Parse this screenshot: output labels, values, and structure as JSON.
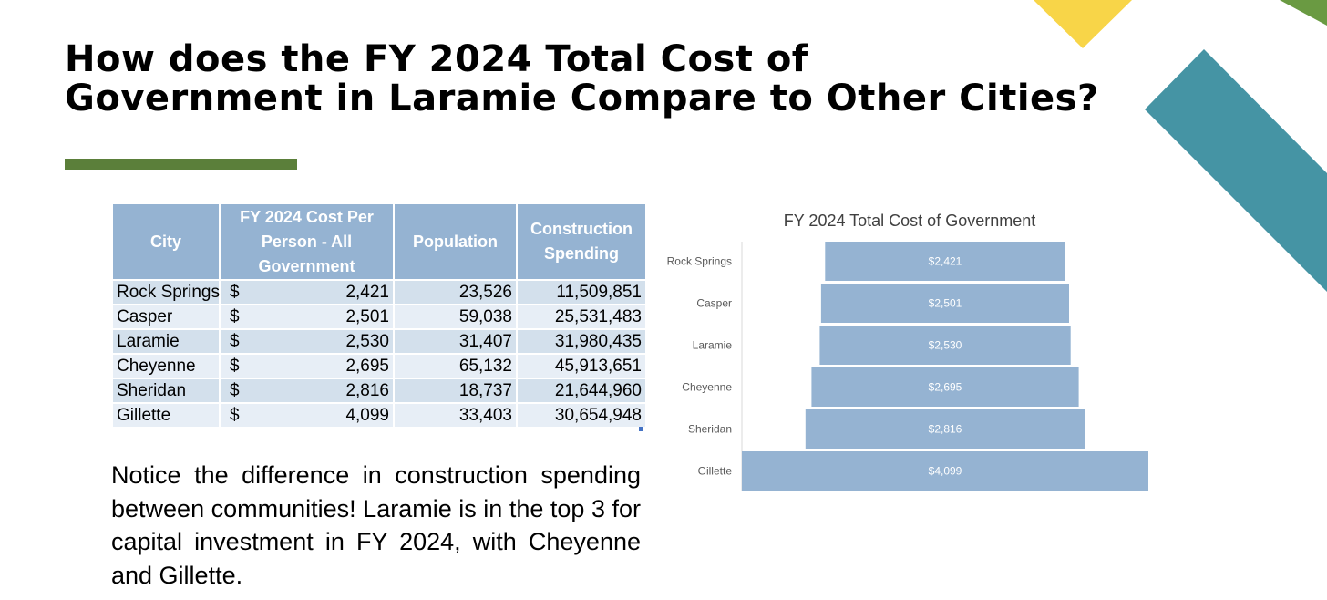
{
  "slide": {
    "title_lines": [
      "How does the FY 2024 Total Cost of",
      "Government in Laramie Compare to Other Cities?"
    ],
    "colors": {
      "accent_bar": "#5b7f3a",
      "deco_yellow": "#f8d548",
      "deco_teal": "#4594a4",
      "deco_green": "#6a9a42",
      "table_header": "#95b3d2",
      "table_row_dark": "#d3e0ec",
      "table_row_light": "#e7eef6",
      "chart_bar": "#95b3d2"
    }
  },
  "table": {
    "headers": {
      "city": "City",
      "cost": "FY 2024 Cost Per Person - All Government",
      "population": "Population",
      "construction": "Construction Spending"
    },
    "currency_symbol": "$",
    "rows": [
      {
        "city": "Rock Springs",
        "cost": "2,421",
        "population": "23,526",
        "construction": "11,509,851"
      },
      {
        "city": "Casper",
        "cost": "2,501",
        "population": "59,038",
        "construction": "25,531,483"
      },
      {
        "city": "Laramie",
        "cost": "2,530",
        "population": "31,407",
        "construction": "31,980,435"
      },
      {
        "city": "Cheyenne",
        "cost": "2,695",
        "population": "65,132",
        "construction": "45,913,651"
      },
      {
        "city": "Sheridan",
        "cost": "2,816",
        "population": "18,737",
        "construction": "21,644,960"
      },
      {
        "city": "Gillette",
        "cost": "4,099",
        "population": "33,403",
        "construction": "30,654,948"
      }
    ]
  },
  "note": "Notice the difference in construction spending between communities!  Laramie is in the top 3 for capital investment in FY 2024, with Cheyenne and Gillette.",
  "chart_data": {
    "type": "bar",
    "orientation": "horizontal-funnel",
    "title": "FY 2024 Total Cost of Government",
    "categories": [
      "Rock Springs",
      "Casper",
      "Laramie",
      "Cheyenne",
      "Sheridan",
      "Gillette"
    ],
    "values": [
      2421,
      2501,
      2530,
      2695,
      2816,
      4099
    ],
    "data_labels": [
      "$2,421",
      "$2,501",
      "$2,530",
      "$2,695",
      "$2,816",
      "$4,099"
    ],
    "xlabel": "",
    "ylabel": "",
    "grid": false,
    "legend": "none"
  }
}
